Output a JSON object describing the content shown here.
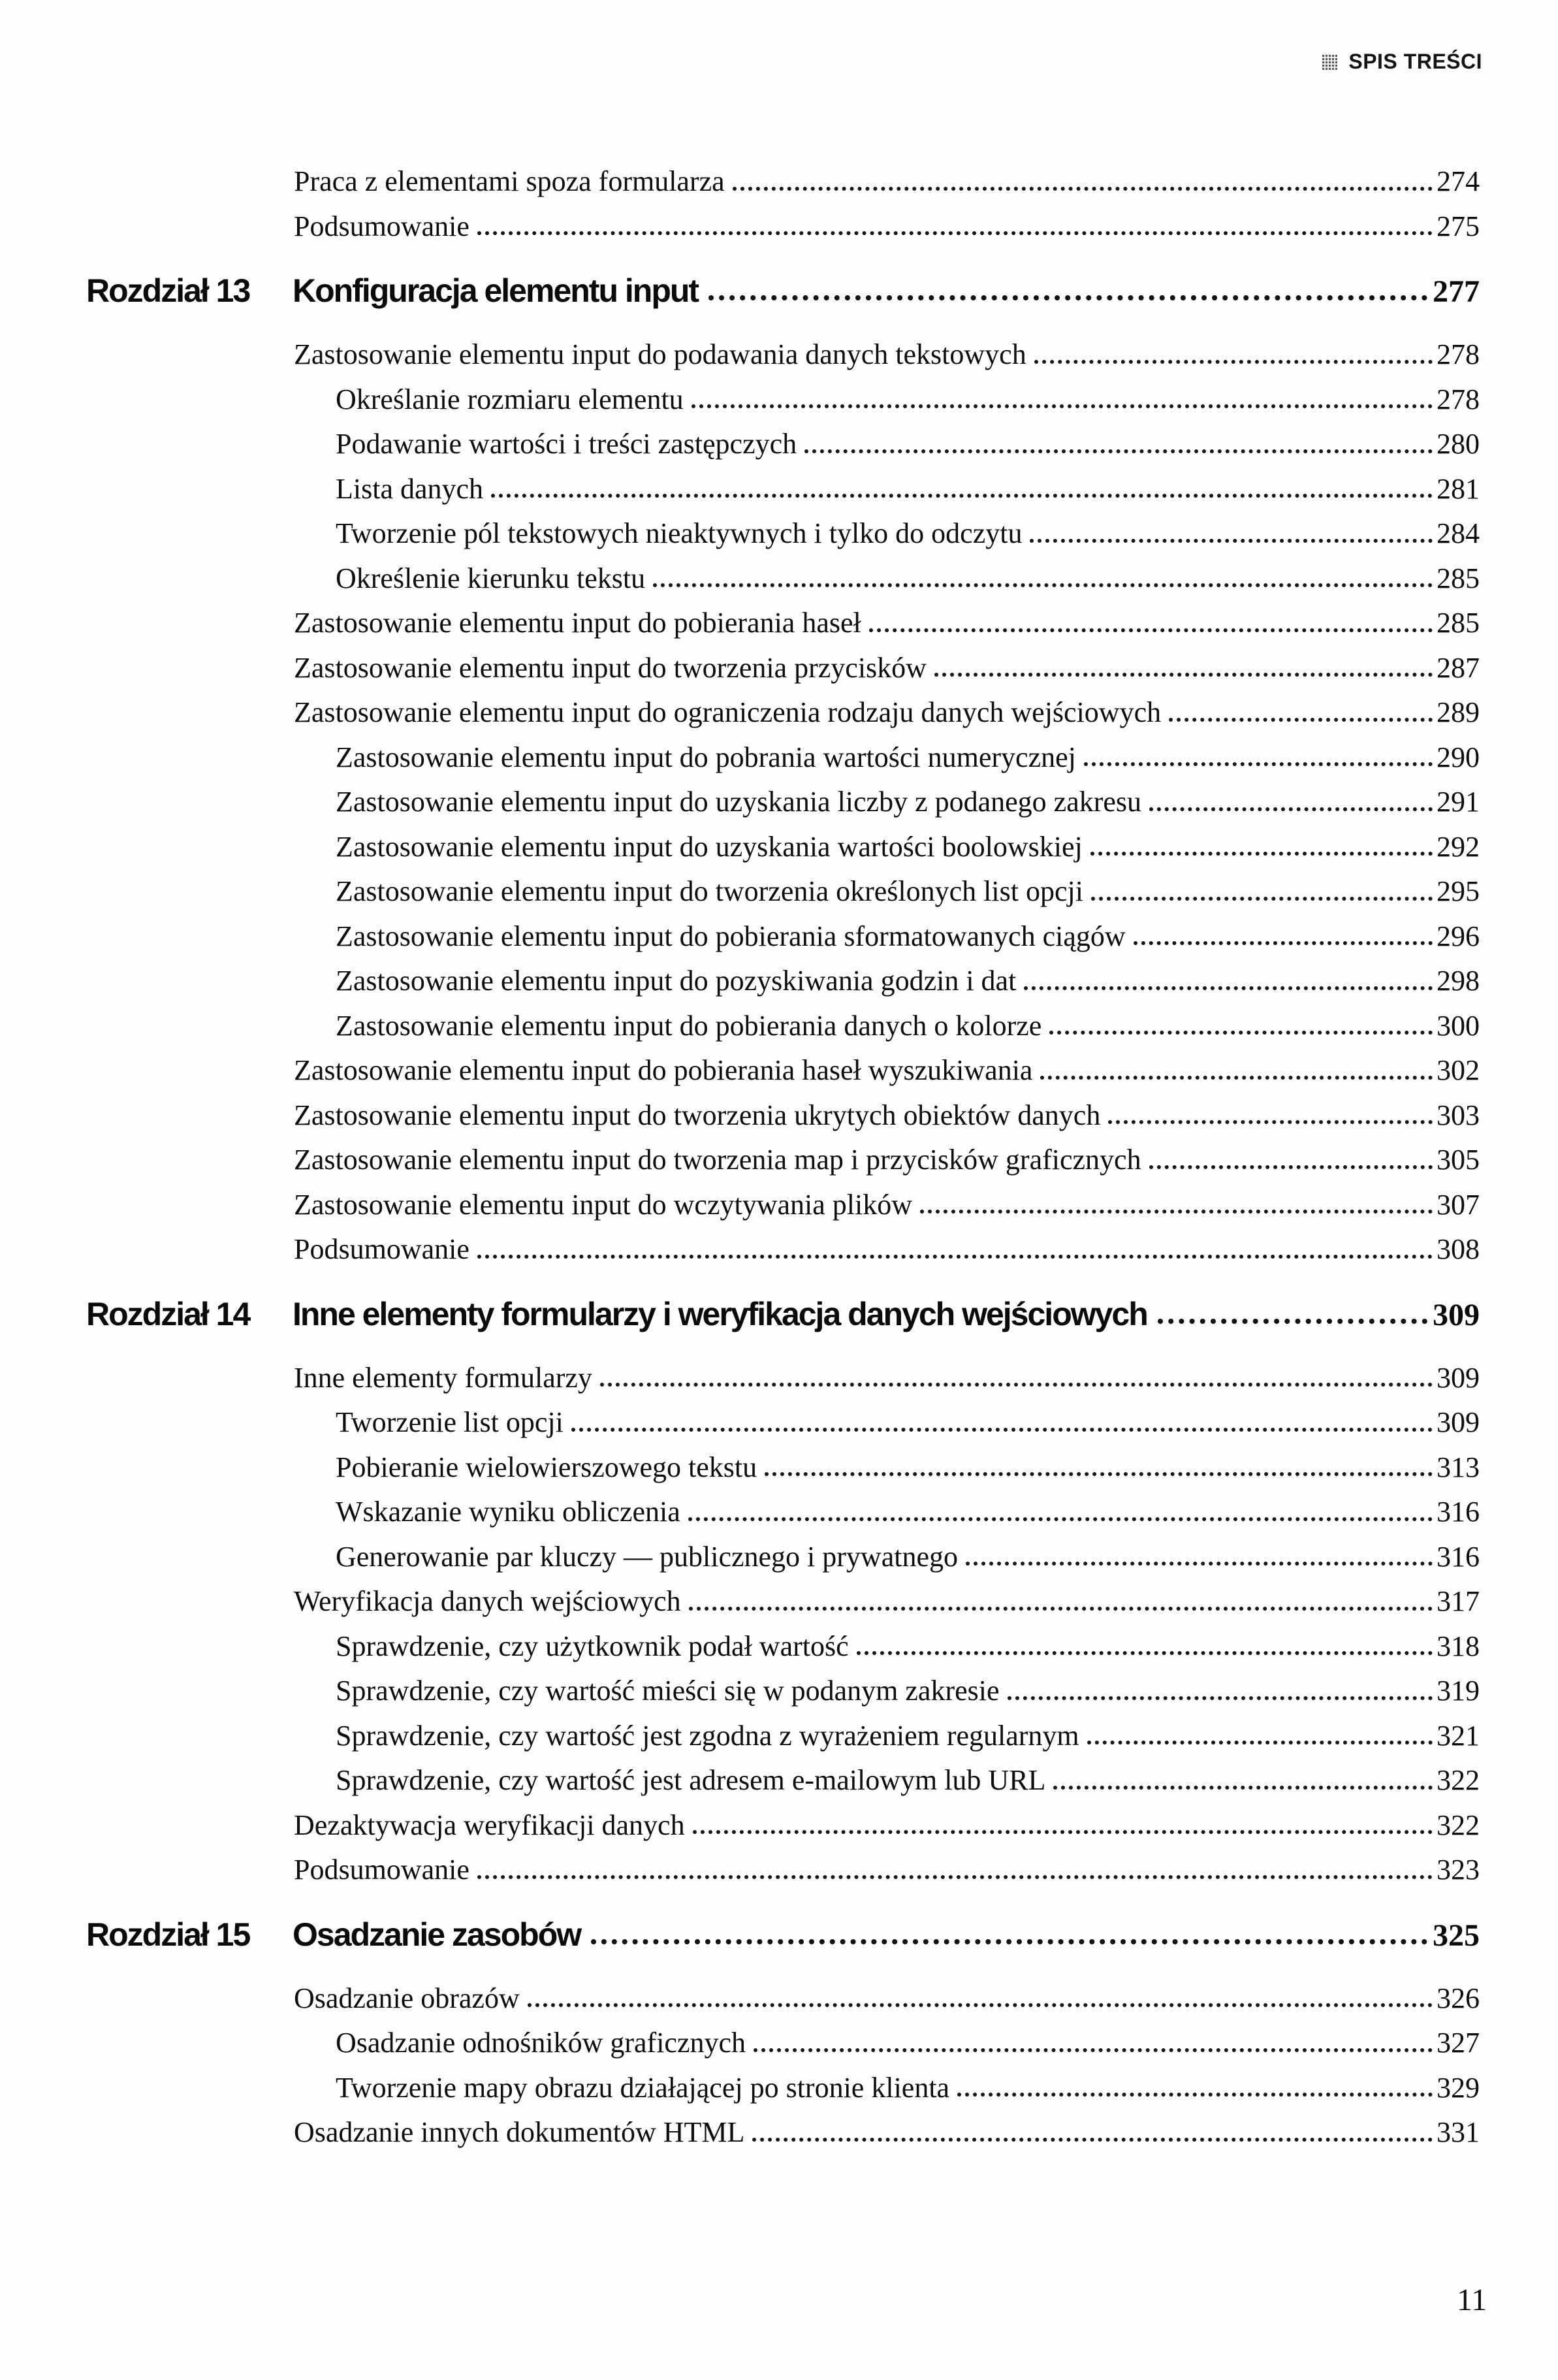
{
  "colors": {
    "ink": "#111111",
    "paper": "#ffffff"
  },
  "header": {
    "title": "SPIS TREŚCI",
    "icon": "halftone-square-icon"
  },
  "footer": {
    "page_number": "11"
  },
  "toc": {
    "rows": [
      {
        "type": "entry",
        "level": 1,
        "title": "Praca z elementami spoza formularza",
        "page": "274"
      },
      {
        "type": "entry",
        "level": 1,
        "title": "Podsumowanie",
        "page": "275"
      },
      {
        "type": "chapter",
        "chapter": "Rozdział 13",
        "title": "Konfiguracja elementu input",
        "page": "277"
      },
      {
        "type": "entry",
        "level": 1,
        "title": "Zastosowanie elementu input do podawania danych tekstowych",
        "page": "278"
      },
      {
        "type": "entry",
        "level": 2,
        "title": "Określanie rozmiaru elementu",
        "page": "278"
      },
      {
        "type": "entry",
        "level": 2,
        "title": "Podawanie wartości i treści zastępczych",
        "page": "280"
      },
      {
        "type": "entry",
        "level": 2,
        "title": "Lista danych",
        "page": "281"
      },
      {
        "type": "entry",
        "level": 2,
        "title": "Tworzenie pól tekstowych nieaktywnych i tylko do odczytu",
        "page": "284"
      },
      {
        "type": "entry",
        "level": 2,
        "title": "Określenie kierunku tekstu",
        "page": "285"
      },
      {
        "type": "entry",
        "level": 1,
        "title": "Zastosowanie elementu input do pobierania haseł",
        "page": "285"
      },
      {
        "type": "entry",
        "level": 1,
        "title": "Zastosowanie elementu input do tworzenia przycisków",
        "page": "287"
      },
      {
        "type": "entry",
        "level": 1,
        "title": "Zastosowanie elementu input do ograniczenia rodzaju danych wejściowych",
        "page": "289"
      },
      {
        "type": "entry",
        "level": 2,
        "title": "Zastosowanie elementu input do pobrania wartości numerycznej",
        "page": "290"
      },
      {
        "type": "entry",
        "level": 2,
        "title": "Zastosowanie elementu input do uzyskania liczby z podanego zakresu",
        "page": "291"
      },
      {
        "type": "entry",
        "level": 2,
        "title": "Zastosowanie elementu input do uzyskania wartości boolowskiej",
        "page": "292"
      },
      {
        "type": "entry",
        "level": 2,
        "title": "Zastosowanie elementu input do tworzenia określonych list opcji",
        "page": "295"
      },
      {
        "type": "entry",
        "level": 2,
        "title": "Zastosowanie elementu input do pobierania sformatowanych ciągów",
        "page": "296"
      },
      {
        "type": "entry",
        "level": 2,
        "title": "Zastosowanie elementu input do pozyskiwania godzin i dat",
        "page": "298"
      },
      {
        "type": "entry",
        "level": 2,
        "title": "Zastosowanie elementu input do pobierania danych o kolorze",
        "page": "300"
      },
      {
        "type": "entry",
        "level": 1,
        "title": "Zastosowanie elementu input do pobierania haseł wyszukiwania",
        "page": "302"
      },
      {
        "type": "entry",
        "level": 1,
        "title": "Zastosowanie elementu input do tworzenia ukrytych obiektów danych",
        "page": "303"
      },
      {
        "type": "entry",
        "level": 1,
        "title": "Zastosowanie elementu input do tworzenia map i przycisków graficznych",
        "page": "305"
      },
      {
        "type": "entry",
        "level": 1,
        "title": "Zastosowanie elementu input do wczytywania plików",
        "page": "307"
      },
      {
        "type": "entry",
        "level": 1,
        "title": "Podsumowanie",
        "page": "308"
      },
      {
        "type": "chapter",
        "chapter": "Rozdział 14",
        "title": "Inne elementy formularzy i weryfikacja danych wejściowych",
        "page": "309"
      },
      {
        "type": "entry",
        "level": 1,
        "title": "Inne elementy formularzy",
        "page": "309"
      },
      {
        "type": "entry",
        "level": 2,
        "title": "Tworzenie list opcji",
        "page": "309"
      },
      {
        "type": "entry",
        "level": 2,
        "title": "Pobieranie wielowierszowego tekstu",
        "page": "313"
      },
      {
        "type": "entry",
        "level": 2,
        "title": "Wskazanie wyniku obliczenia",
        "page": "316"
      },
      {
        "type": "entry",
        "level": 2,
        "title": "Generowanie par kluczy — publicznego i prywatnego",
        "page": "316"
      },
      {
        "type": "entry",
        "level": 1,
        "title": "Weryfikacja danych wejściowych",
        "page": "317"
      },
      {
        "type": "entry",
        "level": 2,
        "title": "Sprawdzenie, czy użytkownik podał wartość",
        "page": "318"
      },
      {
        "type": "entry",
        "level": 2,
        "title": "Sprawdzenie, czy wartość mieści się w podanym zakresie",
        "page": "319"
      },
      {
        "type": "entry",
        "level": 2,
        "title": "Sprawdzenie, czy wartość jest zgodna z wyrażeniem regularnym",
        "page": "321"
      },
      {
        "type": "entry",
        "level": 2,
        "title": "Sprawdzenie, czy wartość jest adresem e-mailowym lub URL",
        "page": "322"
      },
      {
        "type": "entry",
        "level": 1,
        "title": "Dezaktywacja weryfikacji danych",
        "page": "322"
      },
      {
        "type": "entry",
        "level": 1,
        "title": "Podsumowanie",
        "page": "323"
      },
      {
        "type": "chapter",
        "chapter": "Rozdział 15",
        "title": "Osadzanie zasobów",
        "page": "325"
      },
      {
        "type": "entry",
        "level": 1,
        "title": "Osadzanie obrazów",
        "page": "326"
      },
      {
        "type": "entry",
        "level": 2,
        "title": "Osadzanie odnośników graficznych",
        "page": "327"
      },
      {
        "type": "entry",
        "level": 2,
        "title": "Tworzenie mapy obrazu działającej po stronie klienta",
        "page": "329"
      },
      {
        "type": "entry",
        "level": 1,
        "title": "Osadzanie innych dokumentów HTML",
        "page": "331"
      }
    ]
  }
}
